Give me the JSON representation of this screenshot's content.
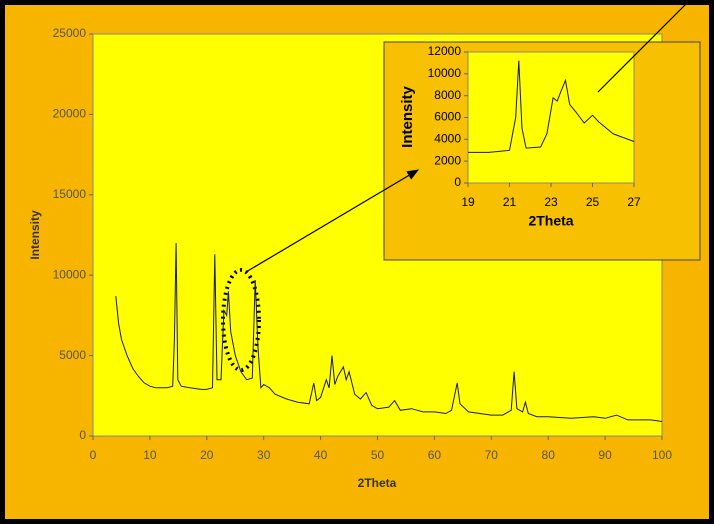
{
  "chart_data": [
    {
      "type": "line",
      "xlabel": "2Theta",
      "ylabel": "Intensity",
      "color": "#1a1a5e",
      "x": [
        4,
        4.5,
        5,
        6,
        7,
        8,
        9,
        10,
        11,
        12,
        13,
        14,
        14.3,
        14.6,
        14.9,
        15.5,
        17,
        19,
        20,
        21,
        21.4,
        21.8,
        22.5,
        23,
        23.5,
        23.8,
        24.2,
        25,
        26,
        27,
        28,
        28.5,
        29,
        29.5,
        30,
        31,
        32,
        34,
        36,
        38,
        38.8,
        39.3,
        40,
        41,
        41.5,
        42,
        42.5,
        43,
        44,
        44.5,
        45,
        46,
        47,
        48,
        49,
        50,
        52,
        53,
        54,
        56,
        58,
        60,
        62,
        63,
        64,
        64.5,
        66,
        68,
        70,
        72,
        73.5,
        74,
        74.5,
        75.5,
        76,
        76.5,
        78,
        80,
        84,
        88,
        90,
        92,
        94,
        98,
        100
      ],
      "values": [
        8700,
        7000,
        6000,
        5000,
        4200,
        3700,
        3300,
        3100,
        3000,
        3000,
        3000,
        3100,
        6000,
        12000,
        3500,
        3100,
        3000,
        2900,
        2900,
        3000,
        11300,
        3500,
        3500,
        7800,
        7500,
        9000,
        6500,
        5000,
        4000,
        3500,
        3600,
        9700,
        5500,
        3000,
        3200,
        3000,
        2600,
        2300,
        2100,
        2000,
        3300,
        2200,
        2400,
        3500,
        3000,
        5000,
        3200,
        3700,
        4300,
        3500,
        4000,
        2600,
        2300,
        2700,
        1900,
        1700,
        1800,
        2200,
        1600,
        1700,
        1500,
        1500,
        1400,
        1600,
        3300,
        2000,
        1500,
        1400,
        1300,
        1300,
        1600,
        4000,
        1700,
        1500,
        2100,
        1400,
        1200,
        1200,
        1100,
        1200,
        1100,
        1300,
        1000,
        1000,
        900
      ],
      "xlim": [
        0,
        100
      ],
      "xticks": [
        0,
        10,
        20,
        30,
        40,
        50,
        60,
        70,
        80,
        90,
        100
      ],
      "ylim": [
        0,
        25000
      ],
      "yticks": [
        0,
        5000,
        10000,
        15000,
        20000,
        25000
      ]
    },
    {
      "type": "line",
      "xlabel": "2Theta",
      "ylabel": "Intensity",
      "color": "#1a1a5e",
      "x": [
        19,
        20,
        21,
        21.3,
        21.45,
        21.6,
        21.8,
        22.5,
        22.8,
        23.1,
        23.3,
        23.5,
        23.7,
        23.9,
        24.2,
        24.6,
        25,
        25.3,
        26,
        27
      ],
      "values": [
        2800,
        2800,
        3000,
        6000,
        11200,
        5000,
        3200,
        3300,
        4500,
        7800,
        7500,
        8500,
        9400,
        7200,
        6500,
        5500,
        6200,
        5600,
        4500,
        3800
      ],
      "xlim": [
        19,
        27
      ],
      "xticks": [
        19,
        21,
        23,
        25,
        27
      ],
      "ylim": [
        0,
        12000
      ],
      "yticks": [
        0,
        2000,
        4000,
        6000,
        8000,
        10000,
        12000
      ]
    }
  ]
}
